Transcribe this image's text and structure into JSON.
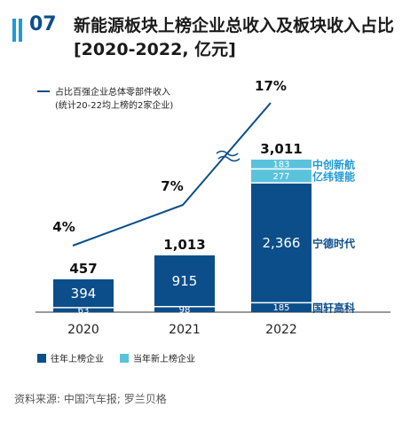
{
  "header": {
    "number": "07",
    "title": "新能源板块上榜企业总收入及板块收入占比 [2020-2022, 亿元]",
    "accent_color": "#1f9ad6",
    "number_color": "#0b4e8a"
  },
  "chart_data": {
    "type": "bar",
    "stacked": true,
    "categories": [
      "2020",
      "2021",
      "2022"
    ],
    "series": [
      {
        "name": "往年上榜企业",
        "color": "#0b4e8a"
      },
      {
        "name": "当年新上榜企业",
        "color": "#5bc2dc"
      }
    ],
    "stacks": [
      {
        "year": "2020",
        "total": "457",
        "segments": [
          {
            "company": "",
            "value": 63,
            "label": "63",
            "series": 0
          },
          {
            "company": "",
            "value": 394,
            "label": "394",
            "series": 0
          }
        ]
      },
      {
        "year": "2021",
        "total": "1,013",
        "segments": [
          {
            "company": "",
            "value": 98,
            "label": "98",
            "series": 0
          },
          {
            "company": "",
            "value": 915,
            "label": "915",
            "series": 0
          }
        ]
      },
      {
        "year": "2022",
        "total": "3,011",
        "segments": [
          {
            "company": "国轩高科",
            "value": 185,
            "label": "185",
            "series": 0
          },
          {
            "company": "宁德时代",
            "value": 2366,
            "label": "2,366",
            "series": 0
          },
          {
            "company": "亿纬锂能",
            "value": 277,
            "label": "277",
            "series": 1
          },
          {
            "company": "中创新航",
            "value": 183,
            "label": "183",
            "series": 1
          }
        ]
      }
    ],
    "line": {
      "name": "占比百强企业总体零部件收入",
      "note": "(统计20-22均上榜的2家企业)",
      "unit": "%",
      "values": [
        4,
        7,
        17
      ],
      "labels": [
        "4%",
        "7%",
        "17%"
      ],
      "axis_break": true
    },
    "legend_placement": "bottom-left",
    "grid": false
  },
  "source": "资料来源: 中国汽车报; 罗兰贝格"
}
